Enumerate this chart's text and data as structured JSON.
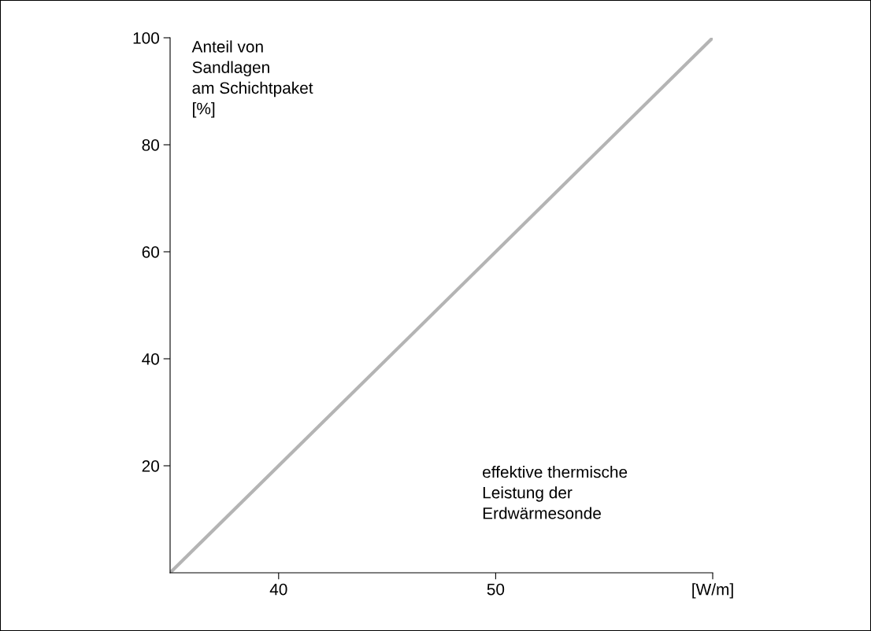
{
  "chart_data": {
    "type": "line",
    "xlabel": "effektive thermische\nLeistung der\nErdwärmesonde",
    "ylabel": "Anteil von\nSandlagen\nam Schichtpaket\n[%]",
    "x": [
      35,
      60
    ],
    "series": [
      {
        "color": "#b4b4b4",
        "values": [
          0,
          100
        ]
      }
    ],
    "xlim": [
      35,
      60
    ],
    "xticks": [
      40,
      50,
      {
        "value": 60,
        "label": "[W/m]"
      }
    ],
    "ylim": [
      0,
      100
    ],
    "yticks": [
      20,
      40,
      60,
      80,
      100
    ],
    "grid": false,
    "legend": false,
    "marker": "none",
    "line_style": "solid"
  }
}
